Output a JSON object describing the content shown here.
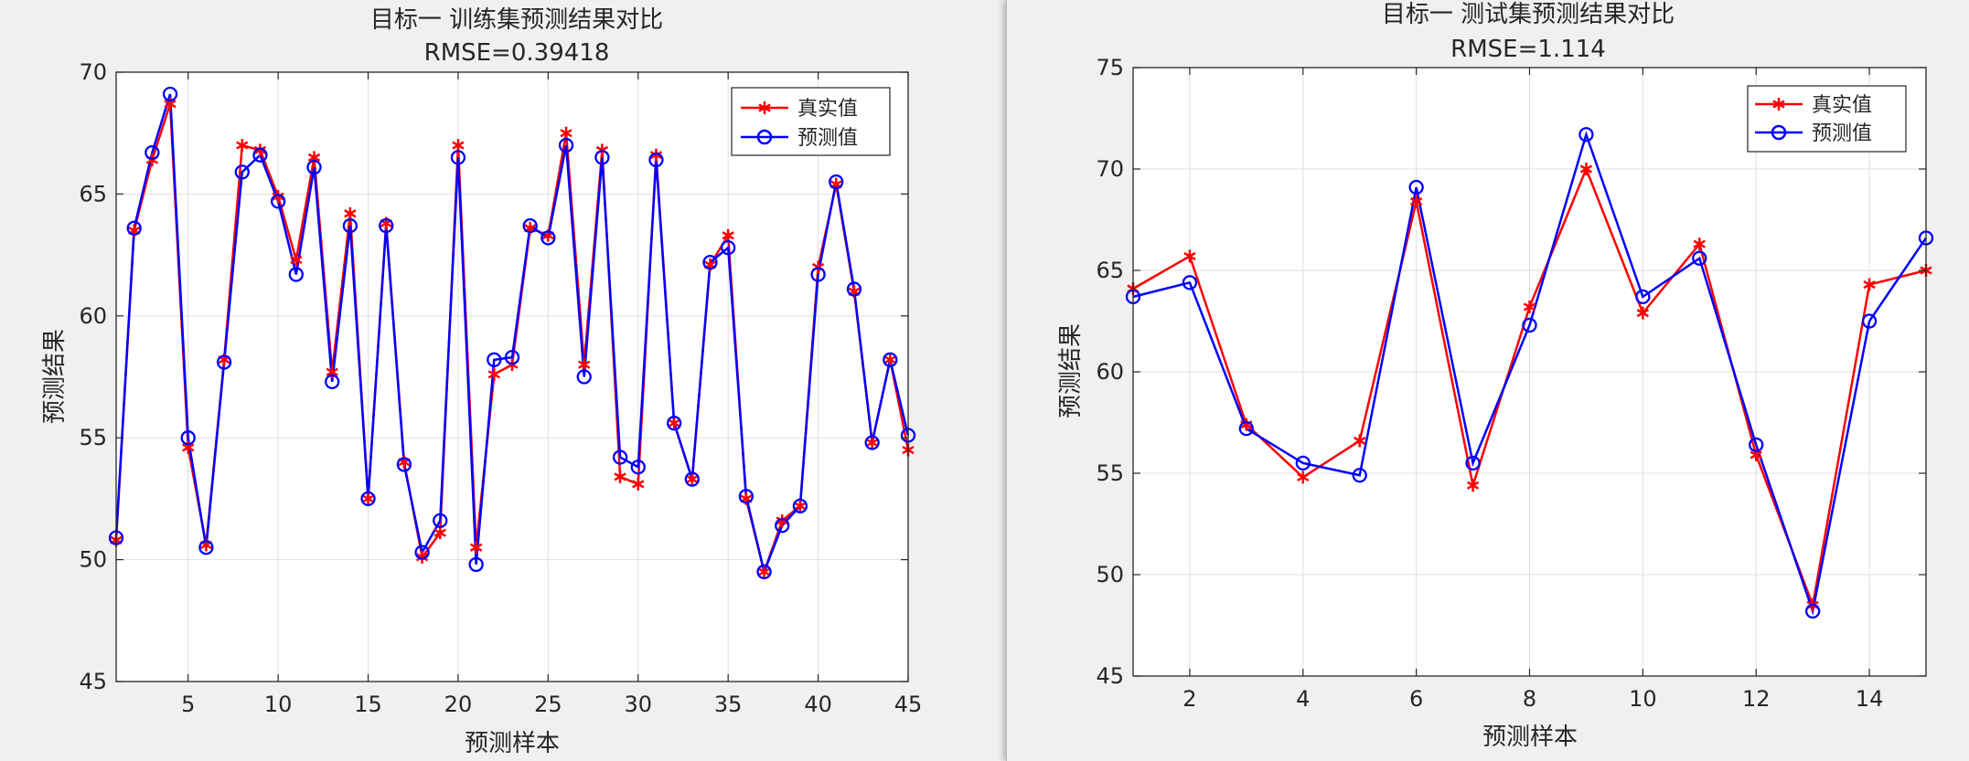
{
  "colors": {
    "true_series": "#ff0000",
    "pred_series": "#0000ff",
    "axes": "#262626",
    "grid": "#dfdfdf"
  },
  "chart_data": [
    {
      "type": "line",
      "title": "目标一 训练集预测结果对比",
      "subtitle": "RMSE=0.39418",
      "xlabel": "预测样本",
      "ylabel": "预测结果",
      "xlim": [
        1,
        45
      ],
      "ylim": [
        45,
        70
      ],
      "xticks": [
        5,
        10,
        15,
        20,
        25,
        30,
        35,
        40,
        45
      ],
      "yticks": [
        45,
        50,
        55,
        60,
        65,
        70
      ],
      "grid": true,
      "legend_position": "top-right",
      "x": [
        1,
        2,
        3,
        4,
        5,
        6,
        7,
        8,
        9,
        10,
        11,
        12,
        13,
        14,
        15,
        16,
        17,
        18,
        19,
        20,
        21,
        22,
        23,
        24,
        25,
        26,
        27,
        28,
        29,
        30,
        31,
        32,
        33,
        34,
        35,
        36,
        37,
        38,
        39,
        40,
        41,
        42,
        43,
        44,
        45
      ],
      "series": [
        {
          "name": "真实值",
          "marker": "asterisk",
          "color": "#ff0000",
          "values": [
            50.8,
            63.5,
            66.4,
            68.7,
            54.6,
            50.6,
            58.2,
            67.0,
            66.8,
            64.9,
            62.3,
            66.5,
            57.7,
            64.2,
            52.5,
            63.8,
            54.0,
            50.1,
            51.1,
            67.0,
            50.5,
            57.6,
            58.0,
            63.6,
            63.3,
            67.5,
            58.0,
            66.8,
            53.4,
            53.1,
            66.6,
            55.6,
            53.3,
            62.1,
            63.3,
            52.5,
            49.5,
            51.6,
            52.2,
            62.0,
            65.4,
            61.0,
            54.8,
            58.2,
            54.5
          ]
        },
        {
          "name": "预测值",
          "marker": "circle",
          "color": "#0000ff",
          "values": [
            50.9,
            63.6,
            66.7,
            69.1,
            55.0,
            50.5,
            58.1,
            65.9,
            66.6,
            64.7,
            61.7,
            66.1,
            57.3,
            63.7,
            52.5,
            63.7,
            53.9,
            50.3,
            51.6,
            66.5,
            49.8,
            58.2,
            58.3,
            63.7,
            63.2,
            67.0,
            57.5,
            66.5,
            54.2,
            53.8,
            66.4,
            55.6,
            53.3,
            62.2,
            62.8,
            52.6,
            49.5,
            51.4,
            52.2,
            61.7,
            65.5,
            61.1,
            54.8,
            58.2,
            55.1
          ]
        }
      ]
    },
    {
      "type": "line",
      "title": "目标一 测试集预测结果对比",
      "subtitle": "RMSE=1.114",
      "xlabel": "预测样本",
      "ylabel": "预测结果",
      "xlim": [
        1,
        15
      ],
      "ylim": [
        45,
        75
      ],
      "xticks": [
        2,
        4,
        6,
        8,
        10,
        12,
        14
      ],
      "yticks": [
        45,
        50,
        55,
        60,
        65,
        70,
        75
      ],
      "grid": true,
      "legend_position": "top-right",
      "x": [
        1,
        2,
        3,
        4,
        5,
        6,
        7,
        8,
        9,
        10,
        11,
        12,
        13,
        14,
        15
      ],
      "series": [
        {
          "name": "真实值",
          "marker": "asterisk",
          "color": "#ff0000",
          "values": [
            64.1,
            65.7,
            57.4,
            54.8,
            56.6,
            68.4,
            54.4,
            63.2,
            70.0,
            62.9,
            66.3,
            55.9,
            48.5,
            64.3,
            65.0
          ]
        },
        {
          "name": "预测值",
          "marker": "circle",
          "color": "#0000ff",
          "values": [
            63.7,
            64.4,
            57.2,
            55.5,
            54.9,
            69.1,
            55.5,
            62.3,
            71.7,
            63.7,
            65.6,
            56.4,
            48.2,
            62.5,
            66.6
          ]
        }
      ]
    }
  ]
}
